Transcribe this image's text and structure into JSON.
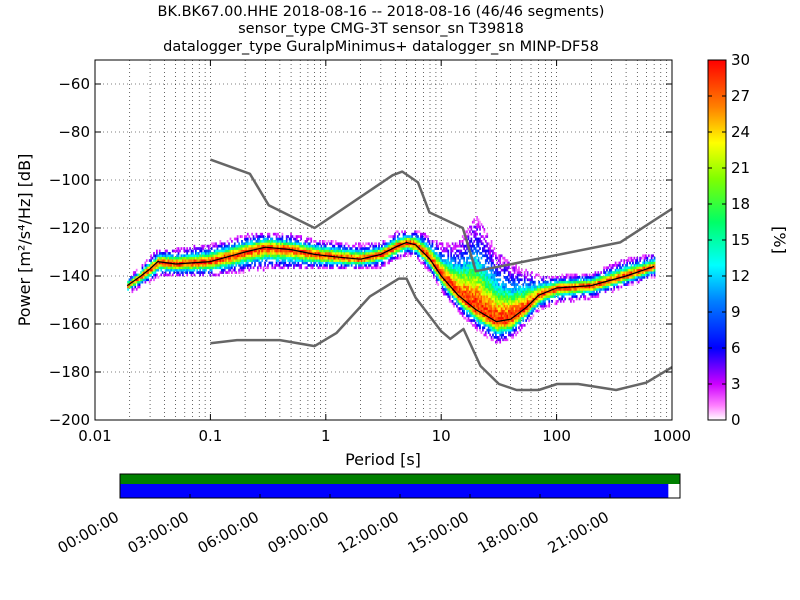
{
  "chart_data": [
    {
      "type": "heatmap",
      "title_lines": [
        "BK.BK67.00.HHE   2018-08-16 -- 2018-08-16  (46/46 segments)",
        "sensor_type CMG-3T sensor_sn T39818",
        "datalogger_type GuralpMinimus+ datalogger_sn MINP-DF58"
      ],
      "xlabel": "Period [s]",
      "ylabel": "Power [m²/s⁴/Hz] [dB]",
      "x_scale": "log",
      "xlim": [
        0.01,
        1000
      ],
      "ylim": [
        -200,
        -50
      ],
      "x_ticks": [
        0.01,
        0.1,
        1,
        10,
        100,
        1000
      ],
      "x_tick_labels": [
        "0.01",
        "0.1",
        "1",
        "10",
        "100",
        "1000"
      ],
      "y_ticks": [
        -200,
        -180,
        -160,
        -140,
        -120,
        -100,
        -80,
        -60
      ],
      "y_tick_labels": [
        "−200",
        "−180",
        "−160",
        "−140",
        "−120",
        "−100",
        "−80",
        "−60"
      ],
      "grid": true,
      "colorbar": {
        "label": "[%]",
        "range": [
          0,
          30
        ],
        "ticks": [
          0,
          3,
          6,
          9,
          12,
          15,
          18,
          21,
          24,
          27,
          30
        ],
        "tick_labels": [
          "0",
          "3",
          "6",
          "9",
          "12",
          "15",
          "18",
          "21",
          "24",
          "27",
          "30"
        ],
        "colormap": "pqlx"
      },
      "series": [
        {
          "role": "new-high-noise-model",
          "color": "#666666",
          "points": [
            [
              0.1,
              -91.5
            ],
            [
              0.22,
              -97.4
            ],
            [
              0.32,
              -110.5
            ],
            [
              0.8,
              -120
            ],
            [
              3.8,
              -98
            ],
            [
              4.6,
              -96.5
            ],
            [
              6.3,
              -101
            ],
            [
              7.9,
              -113.5
            ],
            [
              15.4,
              -120
            ],
            [
              20,
              -138
            ],
            [
              354.8,
              -126
            ],
            [
              1000,
              -112
            ]
          ]
        },
        {
          "role": "new-low-noise-model",
          "color": "#666666",
          "points": [
            [
              0.1,
              -168
            ],
            [
              0.17,
              -166.7
            ],
            [
              0.4,
              -166.7
            ],
            [
              0.8,
              -169.2
            ],
            [
              1.24,
              -163.7
            ],
            [
              2.4,
              -148.6
            ],
            [
              4.3,
              -141.1
            ],
            [
              5,
              -141.1
            ],
            [
              6,
              -149
            ],
            [
              10,
              -163
            ],
            [
              12,
              -166.2
            ],
            [
              15.6,
              -162.1
            ],
            [
              21.9,
              -177.5
            ],
            [
              31.6,
              -185
            ],
            [
              45,
              -187.5
            ],
            [
              70,
              -187.5
            ],
            [
              101,
              -185
            ],
            [
              154,
              -185
            ],
            [
              328,
              -187.5
            ],
            [
              600,
              -184.4
            ],
            [
              1000,
              -178
            ]
          ]
        },
        {
          "role": "mode",
          "color": "#000000",
          "points": [
            [
              0.019,
              -144
            ],
            [
              0.025,
              -140
            ],
            [
              0.03,
              -137
            ],
            [
              0.035,
              -134
            ],
            [
              0.05,
              -135
            ],
            [
              0.1,
              -134
            ],
            [
              0.2,
              -130
            ],
            [
              0.3,
              -128
            ],
            [
              0.5,
              -129
            ],
            [
              0.8,
              -131
            ],
            [
              1.2,
              -132
            ],
            [
              2,
              -133
            ],
            [
              3,
              -131
            ],
            [
              4,
              -128
            ],
            [
              5,
              -126
            ],
            [
              6,
              -127
            ],
            [
              8,
              -133
            ],
            [
              10,
              -140
            ],
            [
              14,
              -148
            ],
            [
              20,
              -154
            ],
            [
              30,
              -159
            ],
            [
              40,
              -158
            ],
            [
              55,
              -153
            ],
            [
              70,
              -148
            ],
            [
              100,
              -145
            ],
            [
              200,
              -144
            ],
            [
              400,
              -140
            ],
            [
              700,
              -136
            ]
          ]
        }
      ],
      "density_band": [
        {
          "x": 0.019,
          "lo": -147,
          "hi": -141,
          "peak": -144
        },
        {
          "x": 0.025,
          "lo": -144,
          "hi": -136,
          "peak": -140
        },
        {
          "x": 0.03,
          "lo": -142,
          "hi": -132,
          "peak": -137
        },
        {
          "x": 0.035,
          "lo": -140,
          "hi": -129,
          "peak": -134
        },
        {
          "x": 0.05,
          "lo": -140,
          "hi": -129,
          "peak": -135
        },
        {
          "x": 0.1,
          "lo": -140,
          "hi": -127,
          "peak": -134
        },
        {
          "x": 0.2,
          "lo": -138,
          "hi": -123,
          "peak": -130
        },
        {
          "x": 0.3,
          "lo": -137,
          "hi": -122,
          "peak": -128
        },
        {
          "x": 0.5,
          "lo": -137,
          "hi": -123,
          "peak": -129
        },
        {
          "x": 0.8,
          "lo": -137,
          "hi": -125,
          "peak": -131
        },
        {
          "x": 1.2,
          "lo": -137,
          "hi": -126,
          "peak": -132
        },
        {
          "x": 2,
          "lo": -137,
          "hi": -127,
          "peak": -133
        },
        {
          "x": 3,
          "lo": -136,
          "hi": -126,
          "peak": -131
        },
        {
          "x": 4,
          "lo": -133,
          "hi": -122,
          "peak": -128
        },
        {
          "x": 5,
          "lo": -131,
          "hi": -121,
          "peak": -126
        },
        {
          "x": 6,
          "lo": -132,
          "hi": -121,
          "peak": -127
        },
        {
          "x": 8,
          "lo": -139,
          "hi": -124,
          "peak": -133
        },
        {
          "x": 10,
          "lo": -146,
          "hi": -127,
          "peak": -140
        },
        {
          "x": 14,
          "lo": -155,
          "hi": -126,
          "peak": -148
        },
        {
          "x": 20,
          "lo": -162,
          "hi": -115,
          "peak": -154
        },
        {
          "x": 30,
          "lo": -168,
          "hi": -130,
          "peak": -159
        },
        {
          "x": 40,
          "lo": -166,
          "hi": -135,
          "peak": -158
        },
        {
          "x": 55,
          "lo": -159,
          "hi": -138,
          "peak": -153
        },
        {
          "x": 70,
          "lo": -154,
          "hi": -140,
          "peak": -148
        },
        {
          "x": 100,
          "lo": -151,
          "hi": -140,
          "peak": -145
        },
        {
          "x": 200,
          "lo": -149,
          "hi": -139,
          "peak": -144
        },
        {
          "x": 400,
          "lo": -144,
          "hi": -133,
          "peak": -140
        },
        {
          "x": 700,
          "lo": -140,
          "hi": -131,
          "peak": -136
        }
      ]
    },
    {
      "type": "timeline",
      "time_ticks": [
        "00:00:00",
        "03:00:00",
        "06:00:00",
        "09:00:00",
        "12:00:00",
        "15:00:00",
        "18:00:00",
        "21:00:00"
      ],
      "span_hours": 24,
      "bars": [
        {
          "role": "data-coverage",
          "color": "#008000",
          "start_h": 0,
          "end_h": 24
        },
        {
          "role": "psd-segments",
          "color": "#0000ff",
          "start_h": 0,
          "end_h": 23.5
        }
      ]
    }
  ]
}
